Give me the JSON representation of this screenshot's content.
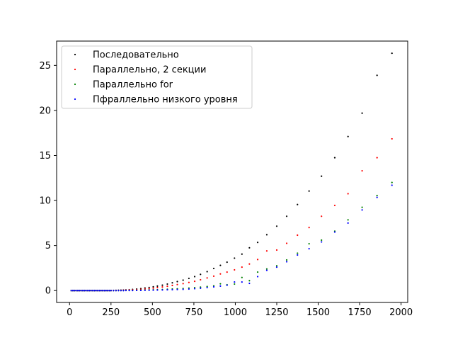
{
  "chart_data": {
    "type": "scatter",
    "title": "",
    "xlabel": "",
    "ylabel": "",
    "xlim": [
      -78,
      2040
    ],
    "ylim": [
      -1.32,
      27.7
    ],
    "xticks": [
      0,
      250,
      500,
      750,
      1000,
      1250,
      1500,
      1750,
      2000
    ],
    "yticks": [
      0,
      5,
      10,
      15,
      20,
      25
    ],
    "xtick_labels": [
      "0",
      "250",
      "500",
      "750",
      "1000",
      "1250",
      "1500",
      "1750",
      "2000"
    ],
    "ytick_labels": [
      "0",
      "5",
      "10",
      "15",
      "20",
      "25"
    ],
    "grid": false,
    "legend_position": "top-left",
    "series": [
      {
        "name": "Последовательно",
        "color": "#000000",
        "points": [
          [
            10,
            0
          ],
          [
            20,
            0
          ],
          [
            30,
            0
          ],
          [
            40,
            0
          ],
          [
            50,
            0
          ],
          [
            60,
            0
          ],
          [
            70,
            0
          ],
          [
            80,
            0
          ],
          [
            90,
            0
          ],
          [
            100,
            0
          ],
          [
            110,
            0
          ],
          [
            120,
            0
          ],
          [
            130,
            0
          ],
          [
            140,
            0
          ],
          [
            150,
            0
          ],
          [
            160,
            0
          ],
          [
            170,
            0
          ],
          [
            180,
            0
          ],
          [
            190,
            0
          ],
          [
            200,
            0
          ],
          [
            210,
            0
          ],
          [
            220,
            0
          ],
          [
            230,
            0
          ],
          [
            240,
            0
          ],
          [
            250,
            0.01
          ],
          [
            265,
            0.02
          ],
          [
            280,
            0.03
          ],
          [
            295,
            0.04
          ],
          [
            310,
            0.05
          ],
          [
            325,
            0.06
          ],
          [
            340,
            0.08
          ],
          [
            360,
            0.1
          ],
          [
            380,
            0.13
          ],
          [
            405,
            0.17
          ],
          [
            430,
            0.22
          ],
          [
            455,
            0.28
          ],
          [
            480,
            0.34
          ],
          [
            505,
            0.42
          ],
          [
            530,
            0.5
          ],
          [
            560,
            0.6
          ],
          [
            590,
            0.72
          ],
          [
            620,
            0.86
          ],
          [
            650,
            1.0
          ],
          [
            685,
            1.16
          ],
          [
            720,
            1.35
          ],
          [
            755,
            1.55
          ],
          [
            790,
            1.8
          ],
          [
            830,
            2.1
          ],
          [
            870,
            2.45
          ],
          [
            910,
            2.8
          ],
          [
            950,
            3.15
          ],
          [
            995,
            3.6
          ],
          [
            1040,
            4.05
          ],
          [
            1085,
            4.75
          ],
          [
            1135,
            5.35
          ],
          [
            1190,
            6.2
          ],
          [
            1250,
            7.15
          ],
          [
            1310,
            8.25
          ],
          [
            1375,
            9.55
          ],
          [
            1445,
            11.05
          ],
          [
            1520,
            12.7
          ],
          [
            1600,
            14.75
          ],
          [
            1680,
            17.1
          ],
          [
            1765,
            19.7
          ],
          [
            1855,
            23.9
          ],
          [
            1945,
            26.35
          ]
        ]
      },
      {
        "name": "Параллельно, 2 секции",
        "color": "#ff0000",
        "points": [
          [
            10,
            0
          ],
          [
            20,
            0
          ],
          [
            30,
            0
          ],
          [
            40,
            0
          ],
          [
            50,
            0
          ],
          [
            60,
            0
          ],
          [
            70,
            0
          ],
          [
            80,
            0
          ],
          [
            90,
            0
          ],
          [
            100,
            0
          ],
          [
            110,
            0
          ],
          [
            120,
            0
          ],
          [
            130,
            0
          ],
          [
            140,
            0
          ],
          [
            150,
            0
          ],
          [
            160,
            0
          ],
          [
            170,
            0
          ],
          [
            180,
            0
          ],
          [
            190,
            0
          ],
          [
            200,
            0
          ],
          [
            210,
            0
          ],
          [
            220,
            0
          ],
          [
            230,
            0
          ],
          [
            240,
            0
          ],
          [
            250,
            0
          ],
          [
            265,
            0.01
          ],
          [
            280,
            0.02
          ],
          [
            295,
            0.02
          ],
          [
            310,
            0.03
          ],
          [
            325,
            0.04
          ],
          [
            340,
            0.05
          ],
          [
            360,
            0.07
          ],
          [
            380,
            0.09
          ],
          [
            405,
            0.11
          ],
          [
            430,
            0.14
          ],
          [
            455,
            0.18
          ],
          [
            480,
            0.22
          ],
          [
            505,
            0.27
          ],
          [
            530,
            0.33
          ],
          [
            560,
            0.4
          ],
          [
            590,
            0.48
          ],
          [
            620,
            0.57
          ],
          [
            650,
            0.67
          ],
          [
            685,
            0.77
          ],
          [
            720,
            0.9
          ],
          [
            755,
            1.03
          ],
          [
            790,
            1.2
          ],
          [
            830,
            1.4
          ],
          [
            870,
            1.6
          ],
          [
            910,
            1.85
          ],
          [
            950,
            2.05
          ],
          [
            995,
            2.3
          ],
          [
            1040,
            2.6
          ],
          [
            1085,
            2.95
          ],
          [
            1135,
            3.45
          ],
          [
            1190,
            4.4
          ],
          [
            1250,
            4.5
          ],
          [
            1310,
            5.25
          ],
          [
            1375,
            6.15
          ],
          [
            1445,
            7.0
          ],
          [
            1520,
            8.25
          ],
          [
            1600,
            9.45
          ],
          [
            1680,
            10.75
          ],
          [
            1765,
            13.3
          ],
          [
            1855,
            14.75
          ],
          [
            1945,
            16.85
          ]
        ]
      },
      {
        "name": "Параллельно for",
        "color": "#008000",
        "points": [
          [
            10,
            0
          ],
          [
            20,
            0
          ],
          [
            30,
            0
          ],
          [
            40,
            0
          ],
          [
            50,
            0
          ],
          [
            60,
            0
          ],
          [
            70,
            0
          ],
          [
            80,
            0
          ],
          [
            90,
            0
          ],
          [
            100,
            0
          ],
          [
            110,
            0
          ],
          [
            120,
            0
          ],
          [
            130,
            0
          ],
          [
            140,
            0
          ],
          [
            150,
            0
          ],
          [
            160,
            0
          ],
          [
            170,
            0
          ],
          [
            180,
            0
          ],
          [
            190,
            0
          ],
          [
            200,
            0
          ],
          [
            210,
            0
          ],
          [
            220,
            0
          ],
          [
            230,
            0
          ],
          [
            240,
            0
          ],
          [
            250,
            0
          ],
          [
            265,
            0
          ],
          [
            280,
            0
          ],
          [
            295,
            0.01
          ],
          [
            310,
            0.01
          ],
          [
            325,
            0.01
          ],
          [
            340,
            0.02
          ],
          [
            360,
            0.02
          ],
          [
            380,
            0.03
          ],
          [
            405,
            0.04
          ],
          [
            430,
            0.05
          ],
          [
            455,
            0.06
          ],
          [
            480,
            0.07
          ],
          [
            505,
            0.09
          ],
          [
            530,
            0.1
          ],
          [
            560,
            0.12
          ],
          [
            590,
            0.15
          ],
          [
            620,
            0.18
          ],
          [
            650,
            0.2
          ],
          [
            685,
            0.23
          ],
          [
            720,
            0.27
          ],
          [
            755,
            0.32
          ],
          [
            790,
            0.38
          ],
          [
            830,
            0.45
          ],
          [
            870,
            0.52
          ],
          [
            910,
            0.75
          ],
          [
            950,
            0.65
          ],
          [
            995,
            0.72
          ],
          [
            1040,
            1.45
          ],
          [
            1085,
            1.1
          ],
          [
            1135,
            2.05
          ],
          [
            1190,
            2.4
          ],
          [
            1250,
            2.75
          ],
          [
            1310,
            3.4
          ],
          [
            1375,
            4.15
          ],
          [
            1445,
            5.2
          ],
          [
            1520,
            5.6
          ],
          [
            1600,
            6.6
          ],
          [
            1680,
            7.85
          ],
          [
            1765,
            9.25
          ],
          [
            1855,
            10.55
          ],
          [
            1945,
            12.0
          ]
        ]
      },
      {
        "name": "Пфраллельно низкого уровня",
        "color": "#0000ff",
        "points": [
          [
            10,
            0
          ],
          [
            20,
            0
          ],
          [
            30,
            0
          ],
          [
            40,
            0
          ],
          [
            50,
            0
          ],
          [
            60,
            0
          ],
          [
            70,
            0
          ],
          [
            80,
            0
          ],
          [
            90,
            0
          ],
          [
            100,
            0
          ],
          [
            110,
            0
          ],
          [
            120,
            0
          ],
          [
            130,
            0
          ],
          [
            140,
            0
          ],
          [
            150,
            0
          ],
          [
            160,
            0
          ],
          [
            170,
            0
          ],
          [
            180,
            0
          ],
          [
            190,
            0
          ],
          [
            200,
            0
          ],
          [
            210,
            0
          ],
          [
            220,
            0
          ],
          [
            230,
            0
          ],
          [
            240,
            0
          ],
          [
            250,
            0
          ],
          [
            265,
            0
          ],
          [
            280,
            0
          ],
          [
            295,
            0
          ],
          [
            310,
            0
          ],
          [
            325,
            0
          ],
          [
            340,
            0.01
          ],
          [
            360,
            0.01
          ],
          [
            380,
            0.01
          ],
          [
            405,
            0.02
          ],
          [
            430,
            0.02
          ],
          [
            455,
            0.03
          ],
          [
            480,
            0.04
          ],
          [
            505,
            0.05
          ],
          [
            530,
            0.06
          ],
          [
            560,
            0.07
          ],
          [
            590,
            0.09
          ],
          [
            620,
            0.1
          ],
          [
            650,
            0.12
          ],
          [
            685,
            0.14
          ],
          [
            720,
            0.17
          ],
          [
            755,
            0.21
          ],
          [
            790,
            0.26
          ],
          [
            830,
            0.33
          ],
          [
            870,
            0.41
          ],
          [
            910,
            0.5
          ],
          [
            950,
            0.6
          ],
          [
            995,
            0.95
          ],
          [
            1040,
            0.95
          ],
          [
            1085,
            0.8
          ],
          [
            1135,
            1.55
          ],
          [
            1190,
            2.25
          ],
          [
            1250,
            2.6
          ],
          [
            1310,
            3.2
          ],
          [
            1375,
            3.95
          ],
          [
            1445,
            4.65
          ],
          [
            1520,
            5.4
          ],
          [
            1600,
            6.5
          ],
          [
            1680,
            7.5
          ],
          [
            1765,
            8.95
          ],
          [
            1855,
            10.35
          ],
          [
            1945,
            11.7
          ]
        ]
      }
    ]
  }
}
